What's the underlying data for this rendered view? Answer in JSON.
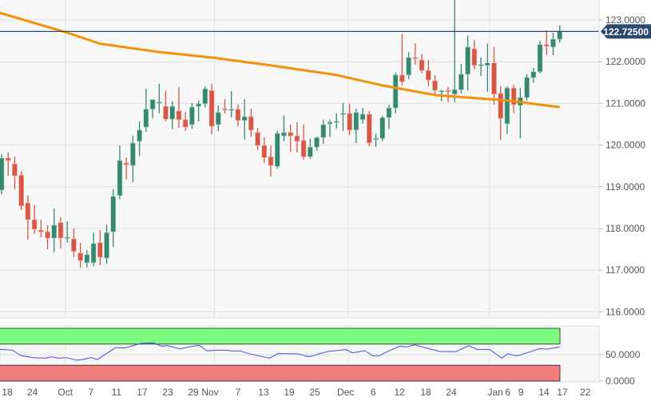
{
  "chart_data": {
    "type": "candlestick",
    "colors": {
      "up": "#35876f",
      "down": "#d65745",
      "sma": "#f39208",
      "last_price_line": "#2c4a6e",
      "overbought_band": "#7efa7e",
      "oversold_band": "#f07b7b",
      "rsi_line": "#3b4cf0",
      "background": "#f7f7f7"
    },
    "price_axis": {
      "ylim": [
        115.8,
        123.5
      ],
      "ticks": [
        "116.0000",
        "117.0000",
        "118.0000",
        "119.0000",
        "120.0000",
        "121.0000",
        "122.0000",
        "123.0000"
      ],
      "tick_values": [
        116,
        117,
        118,
        119,
        120,
        121,
        122,
        123
      ]
    },
    "last_price": {
      "value": 122.725,
      "label": "122.72500"
    },
    "x_ticks": [
      {
        "label": "18",
        "at": 1.85
      },
      {
        "label": "24",
        "at": 5.7
      },
      {
        "label": "Oct",
        "at": 10.7
      },
      {
        "label": "7",
        "at": 14.6
      },
      {
        "label": "11",
        "at": 18.5
      },
      {
        "label": "17",
        "at": 22.4
      },
      {
        "label": "23",
        "at": 26.3
      },
      {
        "label": "29",
        "at": 30.2
      },
      {
        "label": "Nov",
        "at": 32.75
      },
      {
        "label": "7",
        "at": 37.0
      },
      {
        "label": "13",
        "at": 40.9
      },
      {
        "label": "19",
        "at": 44.8
      },
      {
        "label": "25",
        "at": 48.7
      },
      {
        "label": "Dec",
        "at": 53.4
      },
      {
        "label": "6",
        "at": 57.6
      },
      {
        "label": "12",
        "at": 61.6
      },
      {
        "label": "18",
        "at": 65.6
      },
      {
        "label": "24",
        "at": 69.5
      },
      {
        "label": "Jan",
        "at": 76.2
      },
      {
        "label": "6",
        "at": 78.1
      },
      {
        "label": "9",
        "at": 80.1
      },
      {
        "label": "14",
        "at": 83.6
      },
      {
        "label": "17",
        "at": 86.4
      },
      {
        "label": "22",
        "at": 89.9
      }
    ],
    "month_gridlines": [
      10.7,
      33.4,
      53.8,
      75.3
    ],
    "ohlc": [
      [
        118.92,
        119.78,
        118.82,
        119.69
      ],
      [
        119.69,
        119.82,
        119.26,
        119.63
      ],
      [
        119.55,
        119.72,
        118.94,
        119.26
      ],
      [
        119.28,
        119.38,
        118.44,
        118.54
      ],
      [
        118.61,
        118.79,
        117.73,
        118.21
      ],
      [
        118.21,
        118.56,
        117.87,
        117.98
      ],
      [
        117.96,
        118.21,
        117.79,
        117.92
      ],
      [
        117.92,
        118.08,
        117.5,
        117.77
      ],
      [
        117.77,
        118.48,
        117.43,
        118.08
      ],
      [
        118.14,
        118.27,
        117.52,
        117.77
      ],
      [
        117.77,
        118.17,
        117.66,
        117.79
      ],
      [
        117.75,
        118.0,
        117.31,
        117.45
      ],
      [
        117.41,
        117.66,
        117.06,
        117.23
      ],
      [
        117.18,
        117.48,
        117.06,
        117.37
      ],
      [
        117.18,
        117.9,
        117.1,
        117.64
      ],
      [
        117.66,
        117.96,
        117.12,
        117.31
      ],
      [
        117.29,
        118.1,
        117.16,
        117.9
      ],
      [
        117.92,
        118.94,
        117.56,
        118.77
      ],
      [
        118.79,
        119.99,
        118.71,
        119.63
      ],
      [
        119.57,
        119.7,
        119.17,
        119.53
      ],
      [
        119.51,
        120.22,
        119.11,
        120.05
      ],
      [
        120.09,
        120.57,
        119.74,
        120.36
      ],
      [
        120.43,
        121.35,
        120.32,
        120.86
      ],
      [
        120.86,
        121.1,
        120.64,
        121.09
      ],
      [
        121.02,
        121.47,
        120.76,
        121.03
      ],
      [
        120.93,
        121.3,
        120.57,
        120.62
      ],
      [
        120.62,
        121.05,
        120.38,
        120.93
      ],
      [
        120.82,
        121.39,
        120.41,
        120.61
      ],
      [
        120.61,
        120.8,
        120.34,
        120.43
      ],
      [
        120.49,
        121.01,
        120.39,
        120.91
      ],
      [
        120.93,
        121.07,
        120.57,
        120.99
      ],
      [
        120.99,
        121.41,
        120.91,
        121.35
      ],
      [
        121.31,
        121.47,
        120.26,
        120.45
      ],
      [
        120.49,
        120.95,
        120.34,
        120.78
      ],
      [
        120.87,
        121.1,
        120.76,
        120.84
      ],
      [
        120.84,
        121.3,
        120.66,
        120.86
      ],
      [
        120.86,
        120.97,
        120.45,
        120.59
      ],
      [
        120.59,
        121.1,
        120.13,
        120.68
      ],
      [
        120.68,
        120.87,
        120.2,
        120.36
      ],
      [
        120.3,
        120.41,
        119.88,
        119.99
      ],
      [
        119.99,
        120.18,
        119.57,
        119.7
      ],
      [
        119.72,
        119.99,
        119.25,
        119.51
      ],
      [
        119.49,
        120.34,
        119.44,
        120.28
      ],
      [
        120.22,
        120.7,
        120.09,
        120.3
      ],
      [
        120.3,
        120.49,
        119.84,
        120.22
      ],
      [
        120.22,
        120.55,
        119.82,
        120.09
      ],
      [
        120.11,
        120.49,
        119.65,
        119.72
      ],
      [
        119.72,
        120.15,
        119.67,
        119.95
      ],
      [
        119.95,
        120.2,
        119.86,
        120.18
      ],
      [
        120.18,
        120.61,
        120.03,
        120.49
      ],
      [
        120.51,
        120.61,
        120.2,
        120.55
      ],
      [
        120.55,
        120.76,
        120.39,
        120.57
      ],
      [
        120.74,
        121.01,
        120.34,
        120.76
      ],
      [
        120.76,
        120.99,
        120.24,
        120.36
      ],
      [
        120.36,
        120.87,
        120.05,
        120.78
      ],
      [
        120.61,
        120.89,
        120.51,
        120.74
      ],
      [
        120.74,
        120.82,
        119.97,
        120.05
      ],
      [
        120.13,
        120.28,
        119.95,
        120.16
      ],
      [
        120.16,
        120.7,
        120.09,
        120.66
      ],
      [
        120.66,
        120.97,
        120.38,
        120.89
      ],
      [
        120.89,
        121.74,
        120.76,
        121.68
      ],
      [
        121.68,
        122.66,
        121.43,
        121.52
      ],
      [
        121.68,
        122.23,
        121.58,
        122.1
      ],
      [
        122.1,
        122.44,
        121.93,
        122.08
      ],
      [
        122.04,
        122.18,
        121.72,
        121.79
      ],
      [
        121.79,
        122.04,
        121.41,
        121.56
      ],
      [
        121.54,
        121.68,
        121.22,
        121.31
      ],
      [
        121.28,
        121.33,
        121.05,
        121.3
      ],
      [
        121.31,
        121.39,
        121.03,
        121.28
      ],
      [
        121.22,
        123.6,
        121.03,
        121.33
      ],
      [
        121.33,
        121.95,
        121.24,
        121.7
      ],
      [
        121.7,
        122.62,
        121.31,
        122.35
      ],
      [
        122.31,
        122.52,
        121.81,
        121.91
      ],
      [
        121.91,
        122.1,
        121.66,
        121.93
      ],
      [
        121.91,
        122.43,
        121.28,
        121.97
      ],
      [
        121.97,
        122.35,
        120.97,
        121.22
      ],
      [
        121.24,
        121.41,
        120.13,
        120.64
      ],
      [
        120.51,
        121.41,
        120.26,
        121.37
      ],
      [
        121.37,
        121.45,
        120.76,
        120.97
      ],
      [
        120.95,
        121.37,
        120.16,
        121.14
      ],
      [
        121.14,
        121.7,
        121.07,
        121.62
      ],
      [
        121.62,
        121.85,
        121.49,
        121.76
      ],
      [
        121.76,
        122.5,
        121.72,
        122.41
      ],
      [
        122.41,
        122.75,
        122.16,
        122.37
      ],
      [
        122.35,
        122.69,
        122.16,
        122.54
      ],
      [
        122.54,
        122.87,
        122.46,
        122.72
      ]
    ],
    "sma": [
      [
        0.75,
        123.17
      ],
      [
        10.7,
        122.71
      ],
      [
        16,
        122.43
      ],
      [
        25,
        122.23
      ],
      [
        33,
        122.1
      ],
      [
        42,
        121.91
      ],
      [
        52,
        121.68
      ],
      [
        59,
        121.43
      ],
      [
        67,
        121.2
      ],
      [
        72,
        121.14
      ],
      [
        78,
        121.07
      ],
      [
        86,
        120.91
      ]
    ],
    "rsi": {
      "ylim": [
        0,
        100
      ],
      "overbought": 70,
      "oversold": 30,
      "ticks": [
        "50.0000",
        "0.0000"
      ],
      "tick_values": [
        50,
        0
      ],
      "points": [
        [
          0.76,
          60.1
        ],
        [
          2.65,
          58.6
        ],
        [
          3.92,
          48.5
        ],
        [
          5.8,
          44.4
        ],
        [
          7.7,
          43.4
        ],
        [
          8.65,
          46
        ],
        [
          9.6,
          43.4
        ],
        [
          10.9,
          44.4
        ],
        [
          12.4,
          39.4
        ],
        [
          13.4,
          40.9
        ],
        [
          14.65,
          44.4
        ],
        [
          15.6,
          40.9
        ],
        [
          18.4,
          63.6
        ],
        [
          19.7,
          62.6
        ],
        [
          22.2,
          71.2
        ],
        [
          24.1,
          72.2
        ],
        [
          25.4,
          66.2
        ],
        [
          26.3,
          67.2
        ],
        [
          28.2,
          61.1
        ],
        [
          29.5,
          64.6
        ],
        [
          31.1,
          67.7
        ],
        [
          32.3,
          57.1
        ],
        [
          33.6,
          58.6
        ],
        [
          35.2,
          58.6
        ],
        [
          36.1,
          57.1
        ],
        [
          37.4,
          57.1
        ],
        [
          38.6,
          52
        ],
        [
          41.8,
          43.4
        ],
        [
          43.1,
          52
        ],
        [
          46.2,
          51.5
        ],
        [
          47.8,
          46
        ],
        [
          50.7,
          56.1
        ],
        [
          53.5,
          59.6
        ],
        [
          54.4,
          53.5
        ],
        [
          56.3,
          57.6
        ],
        [
          57.6,
          47.5
        ],
        [
          58.6,
          48.5
        ],
        [
          59.8,
          56.1
        ],
        [
          61.7,
          66.2
        ],
        [
          62.7,
          64.6
        ],
        [
          63.9,
          68.7
        ],
        [
          67.7,
          56.1
        ],
        [
          70.2,
          55.6
        ],
        [
          72.1,
          67.2
        ],
        [
          73.4,
          60.1
        ],
        [
          75.3,
          60.1
        ],
        [
          77.2,
          43.4
        ],
        [
          78.1,
          52
        ],
        [
          79.4,
          47.5
        ],
        [
          81.0,
          53.5
        ],
        [
          82.9,
          61.1
        ],
        [
          84.1,
          60.6
        ],
        [
          86.0,
          64.6
        ]
      ]
    }
  }
}
